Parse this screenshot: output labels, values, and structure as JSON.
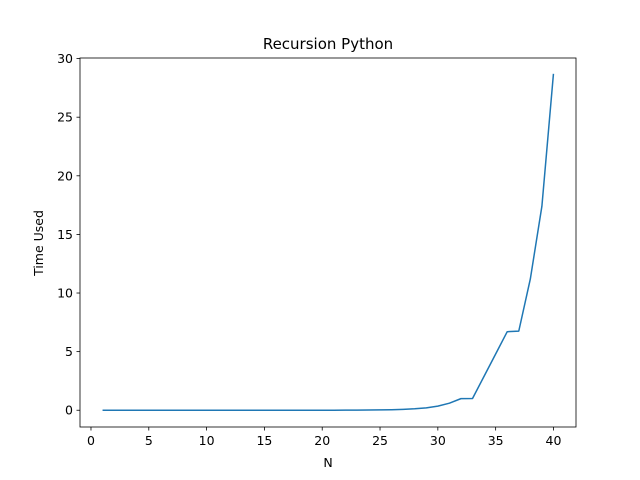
{
  "chart_data": {
    "type": "line",
    "title": "Recursion Python",
    "xlabel": "N",
    "ylabel": "Time Used",
    "xlim": [
      -0.95,
      41.95
    ],
    "ylim": [
      -1.43,
      30.05
    ],
    "xticks": [
      0,
      5,
      10,
      15,
      20,
      25,
      30,
      35,
      40
    ],
    "yticks": [
      0,
      5,
      10,
      15,
      20,
      25,
      30
    ],
    "grid": false,
    "series": [
      {
        "name": "Time Used",
        "color": "#1f77b4",
        "x": [
          1,
          2,
          3,
          4,
          5,
          6,
          7,
          8,
          9,
          10,
          11,
          12,
          13,
          14,
          15,
          16,
          17,
          18,
          19,
          20,
          21,
          22,
          23,
          24,
          25,
          26,
          27,
          28,
          29,
          30,
          31,
          32,
          33,
          34,
          35,
          36,
          37,
          38,
          39,
          40
        ],
        "values": [
          0.0,
          0.0,
          0.0,
          0.0,
          0.0,
          0.0,
          0.0,
          0.0,
          0.0,
          0.0,
          0.0,
          0.0,
          0.0,
          0.0,
          0.0,
          0.0,
          0.0,
          0.001,
          0.002,
          0.003,
          0.004,
          0.007,
          0.011,
          0.018,
          0.029,
          0.047,
          0.076,
          0.123,
          0.2,
          0.35,
          0.6,
          0.99,
          1.0,
          2.9,
          4.8,
          6.7,
          6.75,
          11.2,
          17.4,
          28.7
        ]
      }
    ]
  }
}
